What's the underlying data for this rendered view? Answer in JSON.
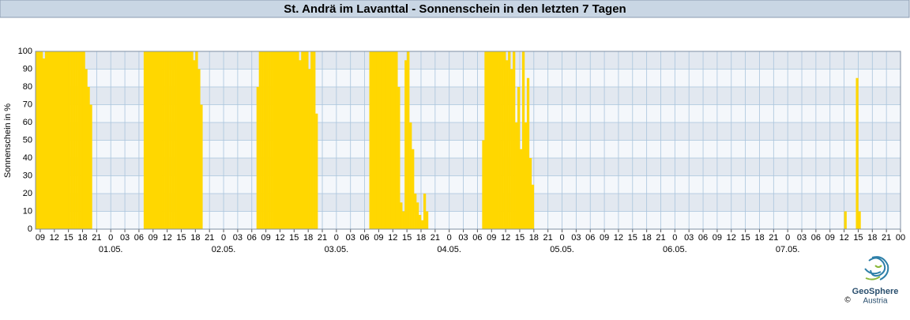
{
  "chart_data": {
    "type": "bar",
    "title": "St. Andrä im Lavanttal - Sonnenschein in den letzten 7 Tagen",
    "y_label": "Sonnenschein in %",
    "color": "#ffd700",
    "grid": true,
    "x": [
      8,
      8.5,
      9,
      9.5,
      10,
      10.5,
      11,
      11.5,
      12,
      12.5,
      13,
      13.5,
      14,
      14.5,
      15,
      15.5,
      16,
      16.5,
      17,
      17.5,
      18,
      18.5,
      19,
      19.5,
      31,
      31.5,
      32,
      32.5,
      33,
      33.5,
      34,
      34.5,
      35,
      35.5,
      36,
      36.5,
      37,
      37.5,
      38,
      38.5,
      39,
      39.5,
      40,
      40.5,
      41,
      41.5,
      42,
      42.5,
      43,
      55,
      55.5,
      56,
      56.5,
      57,
      57.5,
      58,
      58.5,
      59,
      59.5,
      60,
      60.5,
      61,
      61.5,
      62,
      62.5,
      63,
      63.5,
      64,
      64.5,
      65,
      65.5,
      66,
      66.5,
      67,
      67.5,
      79,
      79.5,
      80,
      80.5,
      81,
      81.5,
      82,
      82.5,
      83,
      83.5,
      84,
      84.5,
      85,
      85.5,
      86,
      86.5,
      87,
      87.5,
      88,
      88.5,
      89,
      89.5,
      90,
      90.5,
      91,
      103,
      103.5,
      104,
      104.5,
      105,
      105.5,
      106,
      106.5,
      107,
      107.5,
      108,
      108.5,
      109,
      109.5,
      110,
      110.5,
      111,
      111.5,
      112,
      112.5,
      113,
      113.5,
      180,
      182.5,
      183
    ],
    "values": [
      100,
      100,
      100,
      96,
      100,
      100,
      100,
      100,
      100,
      100,
      100,
      100,
      100,
      100,
      100,
      100,
      100,
      100,
      100,
      100,
      100,
      90,
      80,
      70,
      100,
      100,
      100,
      100,
      100,
      100,
      100,
      100,
      100,
      100,
      100,
      100,
      100,
      100,
      100,
      100,
      100,
      100,
      100,
      100,
      100,
      95,
      100,
      90,
      70,
      80,
      100,
      100,
      100,
      100,
      100,
      100,
      100,
      100,
      100,
      100,
      100,
      100,
      100,
      100,
      100,
      100,
      100,
      95,
      100,
      100,
      100,
      90,
      100,
      100,
      65,
      100,
      100,
      100,
      100,
      100,
      100,
      100,
      100,
      100,
      100,
      100,
      100,
      80,
      15,
      10,
      95,
      100,
      60,
      45,
      20,
      15,
      8,
      5,
      20,
      10,
      50,
      100,
      100,
      100,
      100,
      100,
      100,
      100,
      100,
      100,
      95,
      100,
      90,
      100,
      60,
      80,
      45,
      100,
      60,
      85,
      40,
      25,
      10,
      85,
      10
    ],
    "xlim": [
      8,
      192
    ],
    "ylim": [
      0,
      100
    ],
    "yticks": [
      0,
      10,
      20,
      30,
      40,
      50,
      60,
      70,
      80,
      90,
      100
    ],
    "xticks": [
      {
        "value": 9,
        "label": "09"
      },
      {
        "value": 12,
        "label": "12"
      },
      {
        "value": 15,
        "label": "15"
      },
      {
        "value": 18,
        "label": "18"
      },
      {
        "value": 21,
        "label": "21"
      },
      {
        "value": 24,
        "label": "0"
      },
      {
        "value": 27,
        "label": "03"
      },
      {
        "value": 30,
        "label": "06"
      },
      {
        "value": 33,
        "label": "09"
      },
      {
        "value": 36,
        "label": "12"
      },
      {
        "value": 39,
        "label": "15"
      },
      {
        "value": 42,
        "label": "18"
      },
      {
        "value": 45,
        "label": "21"
      },
      {
        "value": 48,
        "label": "0"
      },
      {
        "value": 51,
        "label": "03"
      },
      {
        "value": 54,
        "label": "06"
      },
      {
        "value": 57,
        "label": "09"
      },
      {
        "value": 60,
        "label": "12"
      },
      {
        "value": 63,
        "label": "15"
      },
      {
        "value": 66,
        "label": "18"
      },
      {
        "value": 69,
        "label": "21"
      },
      {
        "value": 72,
        "label": "0"
      },
      {
        "value": 75,
        "label": "03"
      },
      {
        "value": 78,
        "label": "06"
      },
      {
        "value": 81,
        "label": "09"
      },
      {
        "value": 84,
        "label": "12"
      },
      {
        "value": 87,
        "label": "15"
      },
      {
        "value": 90,
        "label": "18"
      },
      {
        "value": 93,
        "label": "21"
      },
      {
        "value": 96,
        "label": "0"
      },
      {
        "value": 99,
        "label": "03"
      },
      {
        "value": 102,
        "label": "06"
      },
      {
        "value": 105,
        "label": "09"
      },
      {
        "value": 108,
        "label": "12"
      },
      {
        "value": 111,
        "label": "15"
      },
      {
        "value": 114,
        "label": "18"
      },
      {
        "value": 117,
        "label": "21"
      },
      {
        "value": 120,
        "label": "0"
      },
      {
        "value": 123,
        "label": "03"
      },
      {
        "value": 126,
        "label": "06"
      },
      {
        "value": 129,
        "label": "09"
      },
      {
        "value": 132,
        "label": "12"
      },
      {
        "value": 135,
        "label": "15"
      },
      {
        "value": 138,
        "label": "18"
      },
      {
        "value": 141,
        "label": "21"
      },
      {
        "value": 144,
        "label": "0"
      },
      {
        "value": 147,
        "label": "03"
      },
      {
        "value": 150,
        "label": "06"
      },
      {
        "value": 153,
        "label": "09"
      },
      {
        "value": 156,
        "label": "12"
      },
      {
        "value": 159,
        "label": "15"
      },
      {
        "value": 162,
        "label": "18"
      },
      {
        "value": 165,
        "label": "21"
      },
      {
        "value": 168,
        "label": "0"
      },
      {
        "value": 171,
        "label": "03"
      },
      {
        "value": 174,
        "label": "06"
      },
      {
        "value": 177,
        "label": "09"
      },
      {
        "value": 180,
        "label": "12"
      },
      {
        "value": 183,
        "label": "15"
      },
      {
        "value": 186,
        "label": "18"
      },
      {
        "value": 189,
        "label": "21"
      },
      {
        "value": 192,
        "label": "00"
      }
    ],
    "day_labels": [
      {
        "value": 24,
        "label": "01.05."
      },
      {
        "value": 48,
        "label": "02.05."
      },
      {
        "value": 72,
        "label": "03.05."
      },
      {
        "value": 96,
        "label": "04.05."
      },
      {
        "value": 120,
        "label": "05.05."
      },
      {
        "value": 144,
        "label": "06.05."
      },
      {
        "value": 168,
        "label": "07.05."
      }
    ]
  },
  "logo": {
    "name": "GeoSphere",
    "sub": "Austria",
    "copyright": "©"
  }
}
